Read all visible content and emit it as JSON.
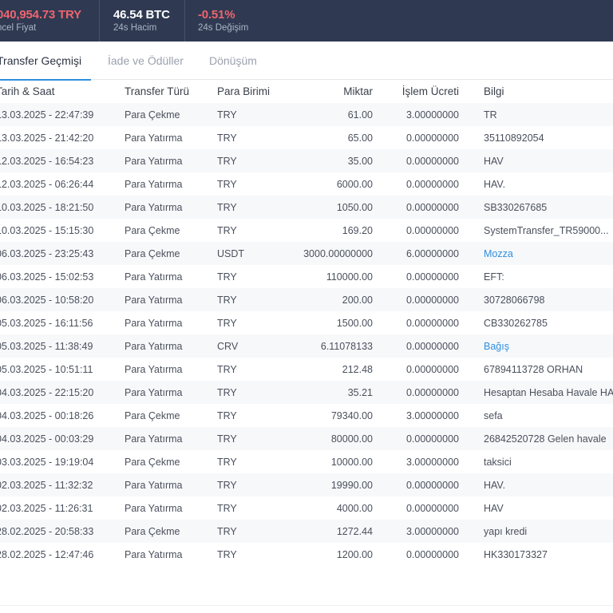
{
  "ticker": {
    "price": {
      "value": "040,954.73 TRY",
      "label": "ncel Fiyat"
    },
    "volume": {
      "value": "46.54 BTC",
      "label": "24s Hacim"
    },
    "change": {
      "value": "-0.51%",
      "label": "24s Değişim"
    }
  },
  "tabs": [
    {
      "label": "Transfer Geçmişi",
      "active": true
    },
    {
      "label": "İade ve Ödüller",
      "active": false
    },
    {
      "label": "Dönüşüm",
      "active": false
    }
  ],
  "table": {
    "columns": {
      "date": "Tarih & Saat",
      "type": "Transfer Türü",
      "currency": "Para Birimi",
      "amount": "Miktar",
      "fee": "İşlem Ücreti",
      "info": "Bilgi"
    },
    "rows": [
      {
        "date": "13.03.2025 - 22:47:39",
        "type": "Para Çekme",
        "currency": "TRY",
        "amount": "61.00",
        "fee": "3.00000000",
        "info": "TR",
        "link": false
      },
      {
        "date": "13.03.2025 - 21:42:20",
        "type": "Para Yatırma",
        "currency": "TRY",
        "amount": "65.00",
        "fee": "0.00000000",
        "info": "35110892054",
        "link": false
      },
      {
        "date": "12.03.2025 - 16:54:23",
        "type": "Para Yatırma",
        "currency": "TRY",
        "amount": "35.00",
        "fee": "0.00000000",
        "info": "HAV",
        "link": false
      },
      {
        "date": "12.03.2025 - 06:26:44",
        "type": "Para Yatırma",
        "currency": "TRY",
        "amount": "6000.00",
        "fee": "0.00000000",
        "info": "HAV.",
        "link": false
      },
      {
        "date": "10.03.2025 - 18:21:50",
        "type": "Para Yatırma",
        "currency": "TRY",
        "amount": "1050.00",
        "fee": "0.00000000",
        "info": "SB330267685",
        "link": false
      },
      {
        "date": "10.03.2025 - 15:15:30",
        "type": "Para Çekme",
        "currency": "TRY",
        "amount": "169.20",
        "fee": "0.00000000",
        "info": "SystemTransfer_TR59000...",
        "link": false
      },
      {
        "date": "06.03.2025 - 23:25:43",
        "type": "Para Çekme",
        "currency": "USDT",
        "amount": "3000.00000000",
        "fee": "6.00000000",
        "info": "Mozza",
        "link": true
      },
      {
        "date": "06.03.2025 - 15:02:53",
        "type": "Para Yatırma",
        "currency": "TRY",
        "amount": "110000.00",
        "fee": "0.00000000",
        "info": "EFT:",
        "link": false
      },
      {
        "date": "06.03.2025 - 10:58:20",
        "type": "Para Yatırma",
        "currency": "TRY",
        "amount": "200.00",
        "fee": "0.00000000",
        "info": "30728066798",
        "link": false
      },
      {
        "date": "05.03.2025 - 16:11:56",
        "type": "Para Yatırma",
        "currency": "TRY",
        "amount": "1500.00",
        "fee": "0.00000000",
        "info": "CB330262785",
        "link": false
      },
      {
        "date": "05.03.2025 - 11:38:49",
        "type": "Para Yatırma",
        "currency": "CRV",
        "amount": "6.11078133",
        "fee": "0.00000000",
        "info": "Bağış",
        "link": true
      },
      {
        "date": "05.03.2025 - 10:51:11",
        "type": "Para Yatırma",
        "currency": "TRY",
        "amount": "212.48",
        "fee": "0.00000000",
        "info": "67894113728 ORHAN",
        "link": false
      },
      {
        "date": "04.03.2025 - 22:15:20",
        "type": "Para Yatırma",
        "currency": "TRY",
        "amount": "35.21",
        "fee": "0.00000000",
        "info": "Hesaptan Hesaba Havale HA",
        "link": false
      },
      {
        "date": "04.03.2025 - 00:18:26",
        "type": "Para Çekme",
        "currency": "TRY",
        "amount": "79340.00",
        "fee": "3.00000000",
        "info": "sefa",
        "link": false
      },
      {
        "date": "04.03.2025 - 00:03:29",
        "type": "Para Yatırma",
        "currency": "TRY",
        "amount": "80000.00",
        "fee": "0.00000000",
        "info": "26842520728 Gelen havale",
        "link": false
      },
      {
        "date": "03.03.2025 - 19:19:04",
        "type": "Para Çekme",
        "currency": "TRY",
        "amount": "10000.00",
        "fee": "3.00000000",
        "info": "taksici",
        "link": false
      },
      {
        "date": "02.03.2025 - 11:32:32",
        "type": "Para Yatırma",
        "currency": "TRY",
        "amount": "19990.00",
        "fee": "0.00000000",
        "info": "HAV.",
        "link": false
      },
      {
        "date": "02.03.2025 - 11:26:31",
        "type": "Para Yatırma",
        "currency": "TRY",
        "amount": "4000.00",
        "fee": "0.00000000",
        "info": "HAV",
        "link": false
      },
      {
        "date": "28.02.2025 - 20:58:33",
        "type": "Para Çekme",
        "currency": "TRY",
        "amount": "1272.44",
        "fee": "3.00000000",
        "info": "yapı kredi",
        "link": false
      },
      {
        "date": "28.02.2025 - 12:47:46",
        "type": "Para Yatırma",
        "currency": "TRY",
        "amount": "1200.00",
        "fee": "0.00000000",
        "info": "HK330173327",
        "link": false
      }
    ]
  }
}
